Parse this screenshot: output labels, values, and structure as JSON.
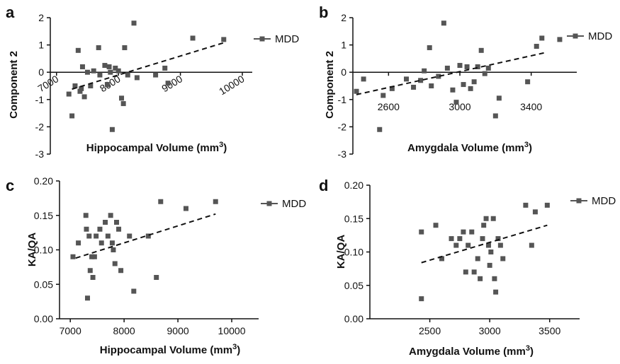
{
  "marker_color": "#555555",
  "line_color": "#111111",
  "chart_data": [
    {
      "panel": "a",
      "type": "scatter",
      "xlabel": "Hippocampal Volume",
      "ylabel": "Component 2",
      "xunit": "(mm",
      "xunit_sup": "3",
      "xunit_close": ")",
      "xlim": [
        6900,
        10000
      ],
      "ylim": [
        -3,
        2
      ],
      "xticks": [
        "7000",
        "8000",
        "9000",
        "10000"
      ],
      "xtick_values": [
        7000,
        8000,
        9000,
        10000
      ],
      "yticks": [
        "2",
        "1",
        "0",
        "-1",
        "-2",
        "-3"
      ],
      "ytick_values": [
        2,
        1,
        0,
        -1,
        -2,
        -3
      ],
      "x_axis_at": "y=0",
      "rotated_xticks": true,
      "legend": "MDD",
      "legend_position": "top-right",
      "trend": [
        [
          7250,
          -0.62
        ],
        [
          9700,
          1.08
        ]
      ],
      "series": [
        {
          "name": "MDD",
          "points": [
            [
              7200,
              -0.8
            ],
            [
              7250,
              -1.6
            ],
            [
              7300,
              -0.5
            ],
            [
              7350,
              0.8
            ],
            [
              7380,
              -0.7
            ],
            [
              7400,
              -0.6
            ],
            [
              7420,
              0.2
            ],
            [
              7450,
              -0.9
            ],
            [
              7500,
              0.0
            ],
            [
              7550,
              -0.5
            ],
            [
              7600,
              0.05
            ],
            [
              7680,
              0.9
            ],
            [
              7700,
              -0.1
            ],
            [
              7780,
              0.25
            ],
            [
              7820,
              -0.45
            ],
            [
              7850,
              0.2
            ],
            [
              7870,
              0.0
            ],
            [
              7900,
              -2.1
            ],
            [
              7950,
              0.15
            ],
            [
              8000,
              0.05
            ],
            [
              8050,
              -0.95
            ],
            [
              8080,
              -1.15
            ],
            [
              8100,
              0.9
            ],
            [
              8150,
              -0.1
            ],
            [
              8250,
              1.8
            ],
            [
              8300,
              -0.2
            ],
            [
              8600,
              -0.1
            ],
            [
              8750,
              0.15
            ],
            [
              8800,
              -0.4
            ],
            [
              9200,
              1.25
            ],
            [
              9700,
              1.2
            ]
          ]
        }
      ]
    },
    {
      "panel": "b",
      "type": "scatter",
      "xlabel": "Amygdala Volume",
      "ylabel": "Component 2",
      "xunit": "(mm",
      "xunit_sup": "3",
      "xunit_close": ")",
      "xlim": [
        2400,
        3600
      ],
      "ylim": [
        -3,
        2
      ],
      "xticks": [
        "2600",
        "3000",
        "3400"
      ],
      "xtick_values": [
        2600,
        3000,
        3400
      ],
      "yticks": [
        "2",
        "1",
        "0",
        "-1",
        "-2",
        "-3"
      ],
      "ytick_values": [
        2,
        1,
        0,
        -1,
        -2,
        -3
      ],
      "x_axis_at": "y=0",
      "rotated_xticks": false,
      "legend": "MDD",
      "legend_position": "top-right",
      "trend": [
        [
          2420,
          -0.82
        ],
        [
          3480,
          0.72
        ]
      ],
      "series": [
        {
          "name": "MDD",
          "points": [
            [
              2420,
              -0.7
            ],
            [
              2460,
              -0.25
            ],
            [
              2550,
              -2.1
            ],
            [
              2570,
              -0.85
            ],
            [
              2620,
              -0.6
            ],
            [
              2700,
              -0.25
            ],
            [
              2740,
              -0.55
            ],
            [
              2780,
              -0.3
            ],
            [
              2800,
              0.05
            ],
            [
              2830,
              0.9
            ],
            [
              2840,
              -0.5
            ],
            [
              2880,
              -0.15
            ],
            [
              2910,
              1.8
            ],
            [
              2930,
              0.15
            ],
            [
              2960,
              -0.65
            ],
            [
              2980,
              -1.1
            ],
            [
              3000,
              0.25
            ],
            [
              3020,
              -0.45
            ],
            [
              3040,
              0.2
            ],
            [
              3060,
              -0.6
            ],
            [
              3080,
              -0.35
            ],
            [
              3100,
              0.2
            ],
            [
              3120,
              0.8
            ],
            [
              3140,
              -0.05
            ],
            [
              3160,
              0.15
            ],
            [
              3200,
              -1.6
            ],
            [
              3220,
              -0.95
            ],
            [
              3380,
              -0.35
            ],
            [
              3430,
              0.95
            ],
            [
              3460,
              1.25
            ],
            [
              3560,
              1.2
            ]
          ]
        }
      ]
    },
    {
      "panel": "c",
      "type": "scatter",
      "xlabel": "Hippocampal Volume",
      "ylabel": "KA/QA",
      "xunit": "(mm",
      "xunit_sup": "3",
      "xunit_close": ")",
      "xlim": [
        6800,
        10500
      ],
      "ylim": [
        0,
        0.2
      ],
      "xticks": [
        "7000",
        "8000",
        "9000",
        "10000"
      ],
      "xtick_values": [
        7000,
        8000,
        9000,
        10000
      ],
      "yticks": [
        "0.20",
        "0.15",
        "0.10",
        "0.05",
        "0.00"
      ],
      "ytick_values": [
        0.2,
        0.15,
        0.1,
        0.05,
        0.0
      ],
      "x_axis_at": "bottom",
      "rotated_xticks": false,
      "legend": "MDD",
      "legend_position": "top-right",
      "trend": [
        [
          7100,
          0.088
        ],
        [
          9700,
          0.152
        ]
      ],
      "series": [
        {
          "name": "MDD",
          "points": [
            [
              7050,
              0.09
            ],
            [
              7150,
              0.11
            ],
            [
              7290,
              0.15
            ],
            [
              7300,
              0.13
            ],
            [
              7320,
              0.03
            ],
            [
              7350,
              0.12
            ],
            [
              7370,
              0.07
            ],
            [
              7400,
              0.09
            ],
            [
              7420,
              0.06
            ],
            [
              7450,
              0.09
            ],
            [
              7480,
              0.12
            ],
            [
              7550,
              0.13
            ],
            [
              7580,
              0.11
            ],
            [
              7650,
              0.14
            ],
            [
              7700,
              0.12
            ],
            [
              7750,
              0.15
            ],
            [
              7780,
              0.11
            ],
            [
              7800,
              0.1
            ],
            [
              7830,
              0.08
            ],
            [
              7860,
              0.14
            ],
            [
              7900,
              0.13
            ],
            [
              7940,
              0.07
            ],
            [
              8100,
              0.12
            ],
            [
              8180,
              0.04
            ],
            [
              8450,
              0.12
            ],
            [
              8600,
              0.06
            ],
            [
              8680,
              0.17
            ],
            [
              9150,
              0.16
            ],
            [
              9700,
              0.17
            ]
          ]
        }
      ]
    },
    {
      "panel": "d",
      "type": "scatter",
      "xlabel": "Amygdala Volume",
      "ylabel": "KA/QA",
      "xunit": "(mm",
      "xunit_sup": "3",
      "xunit_close": ")",
      "xlim": [
        2000,
        3750
      ],
      "ylim": [
        0,
        0.2
      ],
      "xticks": [
        "2500",
        "3000",
        "3500"
      ],
      "xtick_values": [
        2500,
        3000,
        3500
      ],
      "yticks": [
        "0.20",
        "0.15",
        "0.10",
        "0.05",
        "0.00"
      ],
      "ytick_values": [
        0.2,
        0.15,
        0.1,
        0.05,
        0.0
      ],
      "x_axis_at": "bottom",
      "rotated_xticks": false,
      "legend": "MDD",
      "legend_position": "top-right",
      "trend": [
        [
          2430,
          0.084
        ],
        [
          3480,
          0.14
        ]
      ],
      "series": [
        {
          "name": "MDD",
          "points": [
            [
              2430,
              0.13
            ],
            [
              2430,
              0.03
            ],
            [
              2550,
              0.14
            ],
            [
              2600,
              0.09
            ],
            [
              2680,
              0.12
            ],
            [
              2720,
              0.11
            ],
            [
              2750,
              0.12
            ],
            [
              2780,
              0.13
            ],
            [
              2800,
              0.07
            ],
            [
              2820,
              0.11
            ],
            [
              2850,
              0.13
            ],
            [
              2870,
              0.07
            ],
            [
              2900,
              0.09
            ],
            [
              2920,
              0.06
            ],
            [
              2940,
              0.12
            ],
            [
              2950,
              0.14
            ],
            [
              2970,
              0.15
            ],
            [
              2990,
              0.11
            ],
            [
              3000,
              0.08
            ],
            [
              3010,
              0.1
            ],
            [
              3030,
              0.15
            ],
            [
              3040,
              0.06
            ],
            [
              3050,
              0.04
            ],
            [
              3070,
              0.12
            ],
            [
              3090,
              0.11
            ],
            [
              3110,
              0.09
            ],
            [
              3300,
              0.17
            ],
            [
              3350,
              0.11
            ],
            [
              3380,
              0.16
            ],
            [
              3480,
              0.17
            ]
          ]
        }
      ]
    }
  ]
}
